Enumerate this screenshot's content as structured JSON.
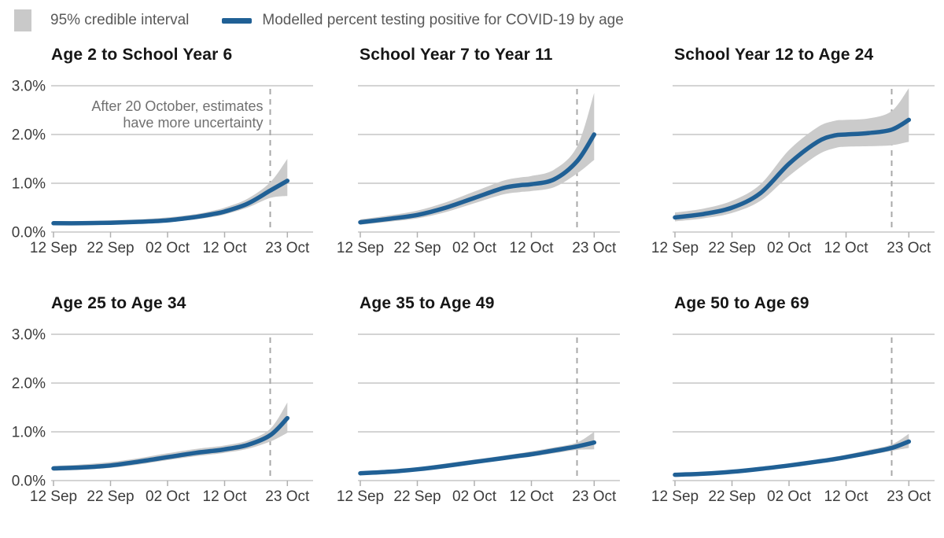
{
  "legend": {
    "ci_label": "95% credible interval",
    "line_label": "Modelled percent testing positive for COVID-19 by age"
  },
  "colors": {
    "line": "#206095",
    "band": "#cbcbcb",
    "grid": "#c6c6c6",
    "axis_tick": "#b0b0b0",
    "dashed_line": "#a8a8a8",
    "title_text": "#161616",
    "tick_label_text": "#3c3c3c",
    "legend_text": "#595959",
    "legend_swatch": "#c9c9c9",
    "annotation_text": "#707070",
    "background": "#ffffff"
  },
  "chart_data": {
    "type": "line",
    "x_ticks": {
      "days": [
        0,
        10,
        20,
        30,
        41
      ],
      "labels": [
        "12 Sep",
        "22 Sep",
        "02 Oct",
        "12 Oct",
        "23 Oct"
      ]
    },
    "y_ticks": {
      "values": [
        3,
        2,
        1,
        0
      ],
      "labels": [
        "3.0%",
        "2.0%",
        "1.0%",
        "0.0%"
      ]
    },
    "ylim": [
      0,
      3
    ],
    "x_range_days": 41,
    "dashed_day": 38,
    "grid": "horizontal-only",
    "series_days": [
      0,
      5,
      10,
      15,
      20,
      25,
      28,
      30,
      34,
      38,
      41
    ],
    "series_names": {
      "mean": "Modelled percent testing positive for COVID-19 by age",
      "band": "95% credible interval"
    },
    "charts": [
      {
        "title": "Age 2 to School Year 6",
        "show_y_labels": true,
        "annotation": {
          "lines": [
            "After 20 October, estimates",
            "have more uncertainty"
          ]
        },
        "mean": [
          0.18,
          0.18,
          0.19,
          0.21,
          0.24,
          0.31,
          0.37,
          0.42,
          0.58,
          0.85,
          1.05
        ],
        "lower": [
          0.14,
          0.14,
          0.15,
          0.17,
          0.2,
          0.26,
          0.31,
          0.36,
          0.5,
          0.7,
          0.74
        ],
        "upper": [
          0.22,
          0.22,
          0.24,
          0.26,
          0.3,
          0.37,
          0.44,
          0.5,
          0.68,
          1.02,
          1.5
        ]
      },
      {
        "title": "School Year 7 to Year 11",
        "show_y_labels": false,
        "mean": [
          0.2,
          0.27,
          0.35,
          0.5,
          0.7,
          0.9,
          0.96,
          0.98,
          1.08,
          1.45,
          2.0
        ],
        "lower": [
          0.15,
          0.21,
          0.28,
          0.41,
          0.59,
          0.77,
          0.82,
          0.84,
          0.92,
          1.2,
          1.48
        ],
        "upper": [
          0.26,
          0.34,
          0.44,
          0.61,
          0.83,
          1.05,
          1.12,
          1.15,
          1.28,
          1.75,
          2.85
        ]
      },
      {
        "title": "School Year 12 to Age 24",
        "show_y_labels": false,
        "mean": [
          0.3,
          0.37,
          0.5,
          0.8,
          1.4,
          1.85,
          1.98,
          2.0,
          2.03,
          2.1,
          2.3
        ],
        "lower": [
          0.22,
          0.28,
          0.39,
          0.64,
          1.15,
          1.58,
          1.72,
          1.75,
          1.76,
          1.78,
          1.85
        ],
        "upper": [
          0.4,
          0.48,
          0.64,
          0.98,
          1.68,
          2.15,
          2.28,
          2.3,
          2.33,
          2.48,
          2.95
        ]
      },
      {
        "title": "Age 25 to Age 34",
        "show_y_labels": true,
        "mean": [
          0.25,
          0.27,
          0.31,
          0.39,
          0.48,
          0.57,
          0.61,
          0.64,
          0.73,
          0.93,
          1.28
        ],
        "lower": [
          0.2,
          0.22,
          0.26,
          0.33,
          0.42,
          0.5,
          0.54,
          0.57,
          0.65,
          0.8,
          0.98
        ],
        "upper": [
          0.3,
          0.33,
          0.38,
          0.46,
          0.56,
          0.65,
          0.69,
          0.72,
          0.82,
          1.06,
          1.6
        ]
      },
      {
        "title": "Age 35 to Age 49",
        "show_y_labels": false,
        "mean": [
          0.15,
          0.18,
          0.23,
          0.3,
          0.38,
          0.46,
          0.51,
          0.54,
          0.62,
          0.7,
          0.78
        ],
        "lower": [
          0.12,
          0.15,
          0.2,
          0.26,
          0.34,
          0.42,
          0.46,
          0.49,
          0.56,
          0.63,
          0.64
        ],
        "upper": [
          0.18,
          0.22,
          0.27,
          0.35,
          0.43,
          0.51,
          0.56,
          0.6,
          0.68,
          0.78,
          1.0
        ]
      },
      {
        "title": "Age 50 to Age 69",
        "show_y_labels": false,
        "mean": [
          0.12,
          0.14,
          0.18,
          0.24,
          0.31,
          0.39,
          0.44,
          0.48,
          0.57,
          0.67,
          0.8
        ],
        "lower": [
          0.1,
          0.12,
          0.15,
          0.21,
          0.28,
          0.35,
          0.4,
          0.44,
          0.52,
          0.61,
          0.67
        ],
        "upper": [
          0.15,
          0.17,
          0.21,
          0.28,
          0.35,
          0.43,
          0.49,
          0.53,
          0.63,
          0.74,
          0.96
        ]
      }
    ]
  }
}
